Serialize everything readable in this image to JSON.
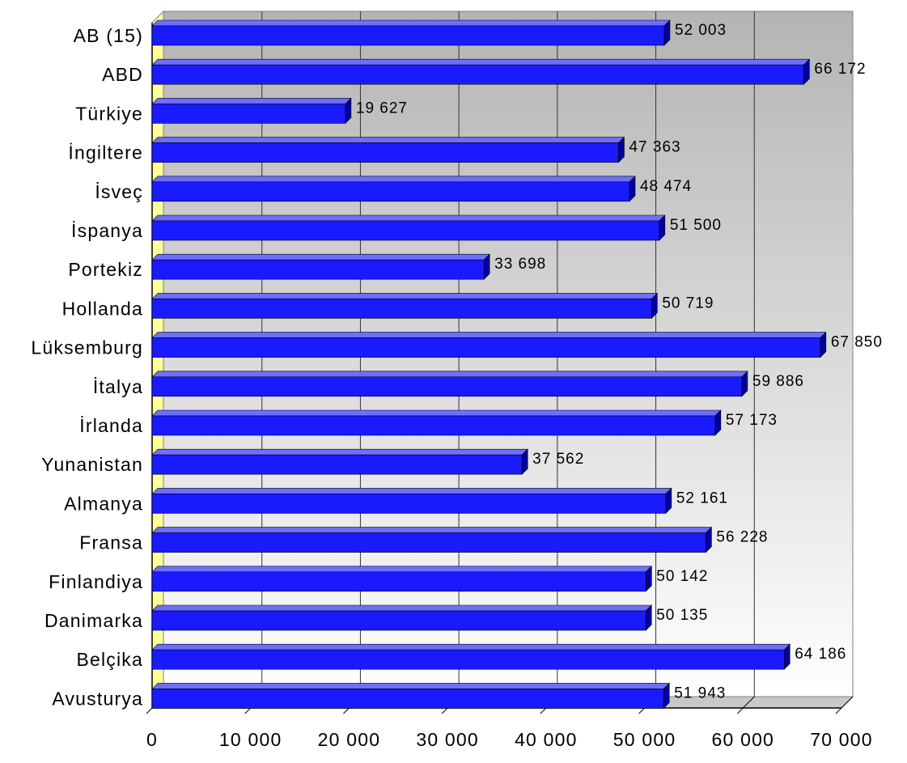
{
  "chart_data": {
    "type": "bar",
    "orientation": "horizontal",
    "title": "",
    "xlabel": "",
    "ylabel": "",
    "categories": [
      "AB (15)",
      "ABD",
      "Türkiye",
      "İngiltere",
      "İsveç",
      "İspanya",
      "Portekiz",
      "Hollanda",
      "Lüksemburg",
      "İtalya",
      "İrlanda",
      "Yunanistan",
      "Almanya",
      "Fransa",
      "Finlandiya",
      "Danimarka",
      "Belçika",
      "Avusturya"
    ],
    "values": [
      52003,
      66172,
      19627,
      47363,
      48474,
      51500,
      33698,
      50719,
      67850,
      59886,
      57173,
      37562,
      52161,
      56228,
      50142,
      50135,
      64186,
      51943
    ],
    "data_labels": [
      "52 003",
      "66 172",
      "19 627",
      "47 363",
      "48 474",
      "51 500",
      "33 698",
      "50 719",
      "67 850",
      "59 886",
      "57 173",
      "37 562",
      "52 161",
      "56 228",
      "50 142",
      "50 135",
      "64 186",
      "51 943"
    ],
    "xlim": [
      0,
      70000
    ],
    "x_ticks": [
      0,
      10000,
      20000,
      30000,
      40000,
      50000,
      60000,
      70000
    ],
    "x_tick_labels": [
      "0",
      "10 000",
      "20 000",
      "30 000",
      "40 000",
      "50 000",
      "60 000",
      "70 000"
    ],
    "grid": true,
    "legend": "none",
    "three_d": true,
    "colors": {
      "bar": "#1a1aff",
      "bar_top": "#6e6eff",
      "bar_side": "#0000a0",
      "wall_left": "#ffff99",
      "wall_gradient_top": "#b4b4b4",
      "wall_gradient_bottom": "#ffffff",
      "gridline": "#333333"
    }
  }
}
